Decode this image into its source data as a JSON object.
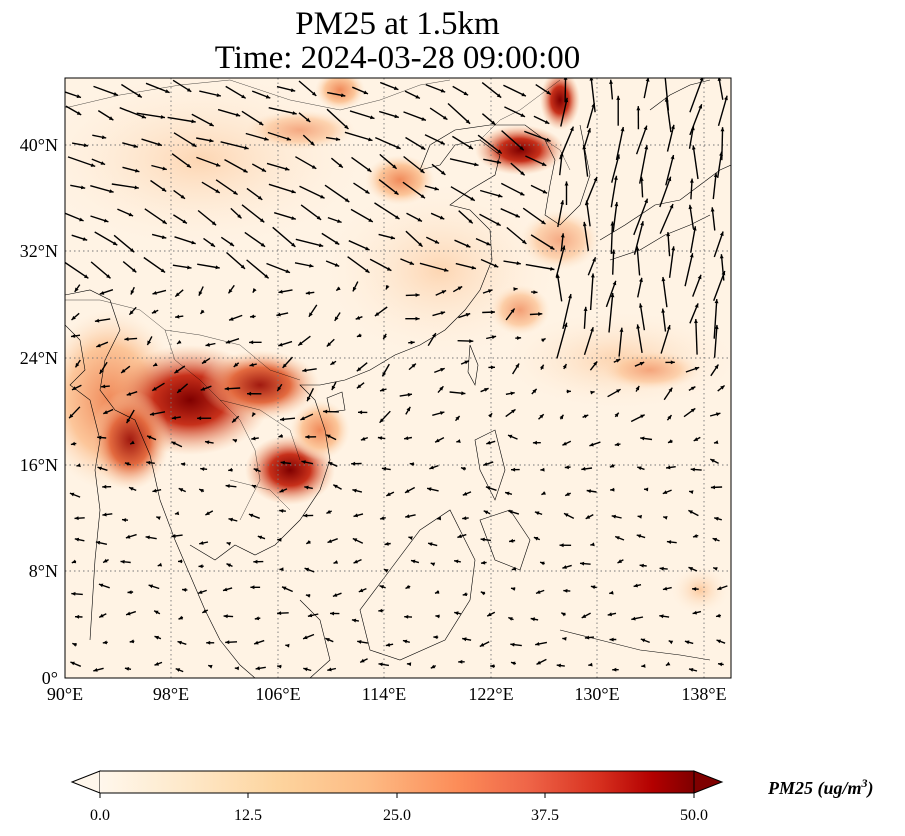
{
  "figure": {
    "title_line1": "PM25 at 1.5km",
    "title_line2": "Time: 2024-03-28 09:00:00"
  },
  "map": {
    "lon_range": [
      90,
      140
    ],
    "lat_range": [
      0,
      45
    ],
    "x_ticks": [
      "90°E",
      "98°E",
      "106°E",
      "114°E",
      "122°E",
      "130°E",
      "138°E"
    ],
    "y_ticks": [
      "0°",
      "8°N",
      "16°N",
      "24°N",
      "32°N",
      "40°N"
    ],
    "gridlines": "dotted",
    "fill_colormap": "OrRd",
    "vector_color": "#000000",
    "coastline_color": "#000000"
  },
  "colorbar": {
    "label": "PM25 (ug/m",
    "label_sup": "3",
    "label_close": ")",
    "ticks": [
      "0.0",
      "12.5",
      "25.0",
      "37.5",
      "50.0"
    ],
    "range": [
      0,
      50
    ],
    "extend": "both"
  }
}
